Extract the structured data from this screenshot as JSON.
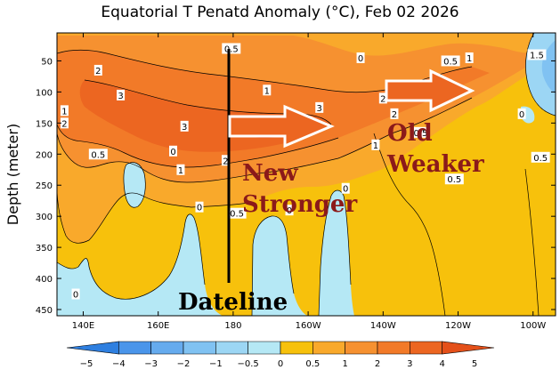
{
  "chart_data": {
    "type": "heatmap",
    "title": "Equatorial T Penatd Anomaly (°C), Feb 02 2026",
    "xlabel": "",
    "ylabel": "Depth (meter)",
    "x_ticks": [
      "140E",
      "160E",
      "180",
      "160W",
      "140W",
      "120W",
      "100W"
    ],
    "x_tick_degrees": [
      140,
      160,
      180,
      200,
      220,
      240,
      260
    ],
    "xlim_degrees": [
      133,
      266
    ],
    "y_ticks": [
      50,
      100,
      150,
      200,
      250,
      300,
      350,
      400,
      450
    ],
    "ylim": [
      5,
      460
    ],
    "colorbar": {
      "levels": [
        -5,
        -4,
        -3,
        -2,
        -1,
        -0.5,
        0,
        0.5,
        1,
        2,
        3,
        4,
        5
      ],
      "labels": [
        "−5",
        "−4",
        "−3",
        "−2",
        "−1",
        "−0.5",
        "0",
        "0.5",
        "1",
        "2",
        "3",
        "4",
        "5"
      ],
      "colors": [
        "#2e7fe0",
        "#4a95ea",
        "#66abee",
        "#80c2f2",
        "#9cd6f4",
        "#b5e8f5",
        "#f7c10c",
        "#f9a92b",
        "#f69130",
        "#f27a28",
        "#ec6621",
        "#e45019"
      ]
    },
    "contour_labels": [
      {
        "text": "0.5",
        "lon": 179.5,
        "depth": 30
      },
      {
        "text": "0",
        "lon": 214,
        "depth": 45
      },
      {
        "text": "0.5",
        "lon": 238,
        "depth": 50
      },
      {
        "text": "1",
        "lon": 243,
        "depth": 45
      },
      {
        "text": "1.5",
        "lon": 261,
        "depth": 40
      },
      {
        "text": "2",
        "lon": 144,
        "depth": 65
      },
      {
        "text": "3",
        "lon": 150,
        "depth": 105
      },
      {
        "text": "1",
        "lon": 189,
        "depth": 97
      },
      {
        "text": "2",
        "lon": 220,
        "depth": 110
      },
      {
        "text": "3",
        "lon": 203,
        "depth": 125
      },
      {
        "text": "4",
        "lon": 184,
        "depth": 150
      },
      {
        "text": "2",
        "lon": 223,
        "depth": 135
      },
      {
        "text": "1",
        "lon": 135,
        "depth": 130
      },
      {
        "text": "2",
        "lon": 135,
        "depth": 150
      },
      {
        "text": "3",
        "lon": 167,
        "depth": 155
      },
      {
        "text": "0.5",
        "lon": 230,
        "depth": 165
      },
      {
        "text": "1",
        "lon": 218,
        "depth": 185
      },
      {
        "text": "0.5",
        "lon": 144,
        "depth": 200
      },
      {
        "text": "0",
        "lon": 164,
        "depth": 195
      },
      {
        "text": "2",
        "lon": 178,
        "depth": 210
      },
      {
        "text": "1",
        "lon": 166,
        "depth": 225
      },
      {
        "text": "0.5",
        "lon": 239,
        "depth": 240
      },
      {
        "text": "0.5",
        "lon": 262,
        "depth": 205
      },
      {
        "text": "0",
        "lon": 210,
        "depth": 255
      },
      {
        "text": "0",
        "lon": 171,
        "depth": 285
      },
      {
        "text": "0.5",
        "lon": 181,
        "depth": 295
      },
      {
        "text": "0",
        "lon": 195,
        "depth": 290
      },
      {
        "text": "0",
        "lon": 138,
        "depth": 425
      },
      {
        "text": "0",
        "lon": 257,
        "depth": 135
      }
    ],
    "annotations": {
      "dateline_label": "Dateline",
      "new_label_line1": "New",
      "new_label_line2": "Stronger",
      "old_label_line1": "Old",
      "old_label_line2": "Weaker"
    }
  }
}
